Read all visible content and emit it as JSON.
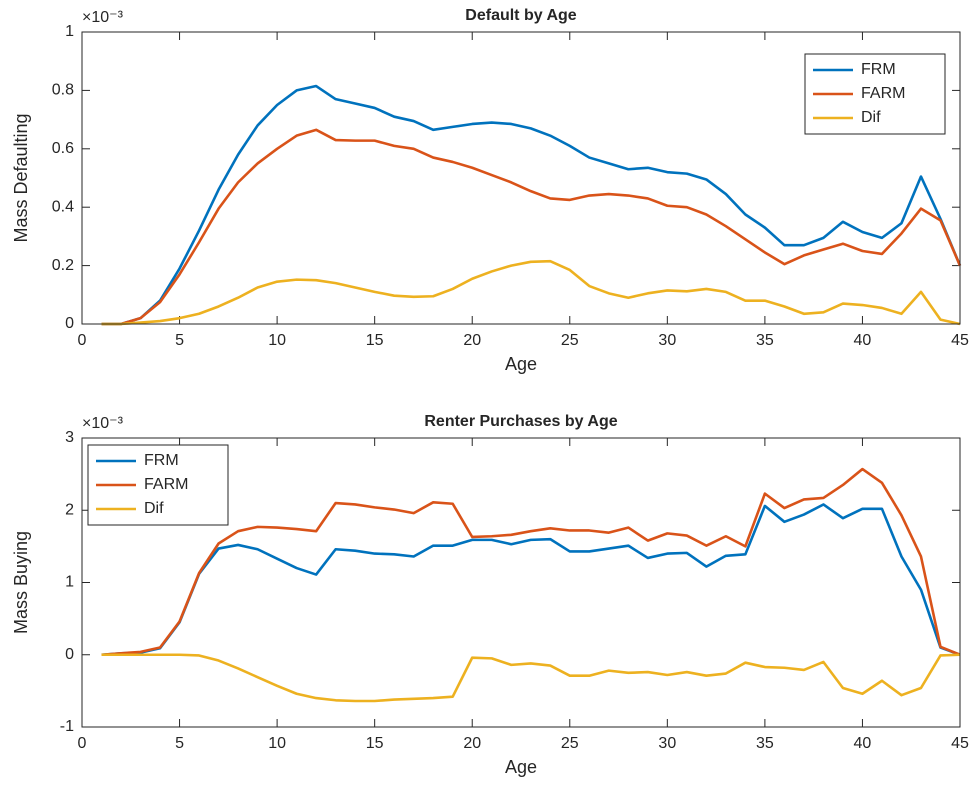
{
  "chart_data": [
    {
      "type": "line",
      "title": "Default by Age",
      "xlabel": "Age",
      "ylabel": "Mass Defaulting",
      "y_multiplier": "×10⁻³",
      "x": [
        1,
        2,
        3,
        4,
        5,
        6,
        7,
        8,
        9,
        10,
        11,
        12,
        13,
        14,
        15,
        16,
        17,
        18,
        19,
        20,
        21,
        22,
        23,
        24,
        25,
        26,
        27,
        28,
        29,
        30,
        31,
        32,
        33,
        34,
        35,
        36,
        37,
        38,
        39,
        40,
        41,
        42,
        43,
        44,
        45
      ],
      "xlim": [
        0,
        45
      ],
      "xticks": [
        0,
        5,
        10,
        15,
        20,
        25,
        30,
        35,
        40,
        45
      ],
      "ylim": [
        0,
        1
      ],
      "yticks": [
        0,
        0.2,
        0.4,
        0.6,
        0.8,
        1
      ],
      "legend": "upper right",
      "series": [
        {
          "name": "FRM",
          "color": "#0072BD",
          "values": [
            0,
            0,
            0.02,
            0.08,
            0.19,
            0.32,
            0.46,
            0.58,
            0.68,
            0.75,
            0.8,
            0.815,
            0.77,
            0.755,
            0.74,
            0.71,
            0.695,
            0.665,
            0.675,
            0.685,
            0.69,
            0.685,
            0.67,
            0.645,
            0.61,
            0.57,
            0.55,
            0.53,
            0.535,
            0.52,
            0.515,
            0.495,
            0.445,
            0.375,
            0.33,
            0.27,
            0.27,
            0.295,
            0.35,
            0.315,
            0.295,
            0.345,
            0.505,
            0.36,
            0.2
          ]
        },
        {
          "name": "FARM",
          "color": "#D95319",
          "values": [
            0,
            0,
            0.02,
            0.075,
            0.17,
            0.28,
            0.395,
            0.485,
            0.55,
            0.6,
            0.645,
            0.665,
            0.63,
            0.628,
            0.628,
            0.61,
            0.6,
            0.57,
            0.555,
            0.535,
            0.51,
            0.485,
            0.455,
            0.43,
            0.425,
            0.44,
            0.445,
            0.44,
            0.43,
            0.405,
            0.4,
            0.375,
            0.335,
            0.29,
            0.245,
            0.205,
            0.235,
            0.255,
            0.275,
            0.25,
            0.24,
            0.31,
            0.395,
            0.355,
            0.2
          ]
        },
        {
          "name": "Dif",
          "color": "#EDB120",
          "values": [
            0,
            0,
            0.005,
            0.01,
            0.02,
            0.035,
            0.06,
            0.09,
            0.125,
            0.145,
            0.152,
            0.15,
            0.14,
            0.125,
            0.11,
            0.097,
            0.093,
            0.095,
            0.12,
            0.155,
            0.18,
            0.2,
            0.213,
            0.215,
            0.185,
            0.13,
            0.105,
            0.09,
            0.105,
            0.115,
            0.112,
            0.12,
            0.11,
            0.08,
            0.08,
            0.06,
            0.035,
            0.04,
            0.07,
            0.065,
            0.055,
            0.035,
            0.11,
            0.015,
            0
          ]
        }
      ]
    },
    {
      "type": "line",
      "title": "Renter Purchases by Age",
      "xlabel": "Age",
      "ylabel": "Mass Buying",
      "y_multiplier": "×10⁻³",
      "x": [
        1,
        2,
        3,
        4,
        5,
        6,
        7,
        8,
        9,
        10,
        11,
        12,
        13,
        14,
        15,
        16,
        17,
        18,
        19,
        20,
        21,
        22,
        23,
        24,
        25,
        26,
        27,
        28,
        29,
        30,
        31,
        32,
        33,
        34,
        35,
        36,
        37,
        38,
        39,
        40,
        41,
        42,
        43,
        44,
        45
      ],
      "xlim": [
        0,
        45
      ],
      "xticks": [
        0,
        5,
        10,
        15,
        20,
        25,
        30,
        35,
        40,
        45
      ],
      "ylim": [
        -1,
        3
      ],
      "yticks": [
        -1,
        0,
        1,
        2,
        3
      ],
      "legend": "upper left",
      "series": [
        {
          "name": "FRM",
          "color": "#0072BD",
          "values": [
            0,
            0.02,
            0.03,
            0.09,
            0.45,
            1.12,
            1.47,
            1.52,
            1.46,
            1.33,
            1.2,
            1.11,
            1.46,
            1.44,
            1.4,
            1.39,
            1.36,
            1.51,
            1.51,
            1.59,
            1.59,
            1.53,
            1.59,
            1.6,
            1.43,
            1.43,
            1.47,
            1.51,
            1.34,
            1.4,
            1.41,
            1.22,
            1.37,
            1.39,
            2.06,
            1.84,
            1.94,
            2.08,
            1.89,
            2.02,
            2.02,
            1.36,
            0.9,
            0.1,
            0
          ]
        },
        {
          "name": "FARM",
          "color": "#D95319",
          "values": [
            0,
            0.02,
            0.04,
            0.1,
            0.46,
            1.13,
            1.54,
            1.71,
            1.77,
            1.76,
            1.74,
            1.71,
            2.1,
            2.08,
            2.04,
            2.01,
            1.96,
            2.11,
            2.09,
            1.63,
            1.64,
            1.66,
            1.71,
            1.75,
            1.72,
            1.72,
            1.69,
            1.76,
            1.58,
            1.68,
            1.65,
            1.51,
            1.64,
            1.5,
            2.23,
            2.03,
            2.15,
            2.17,
            2.35,
            2.57,
            2.38,
            1.93,
            1.36,
            0.11,
            0
          ]
        },
        {
          "name": "Dif",
          "color": "#EDB120",
          "values": [
            0,
            0,
            0,
            0,
            0,
            -0.01,
            -0.08,
            -0.19,
            -0.31,
            -0.43,
            -0.54,
            -0.6,
            -0.63,
            -0.64,
            -0.64,
            -0.62,
            -0.61,
            -0.6,
            -0.58,
            -0.04,
            -0.05,
            -0.14,
            -0.12,
            -0.15,
            -0.29,
            -0.29,
            -0.22,
            -0.25,
            -0.24,
            -0.28,
            -0.24,
            -0.29,
            -0.26,
            -0.11,
            -0.17,
            -0.18,
            -0.21,
            -0.1,
            -0.46,
            -0.54,
            -0.36,
            -0.56,
            -0.46,
            -0.01,
            0
          ]
        }
      ]
    }
  ]
}
